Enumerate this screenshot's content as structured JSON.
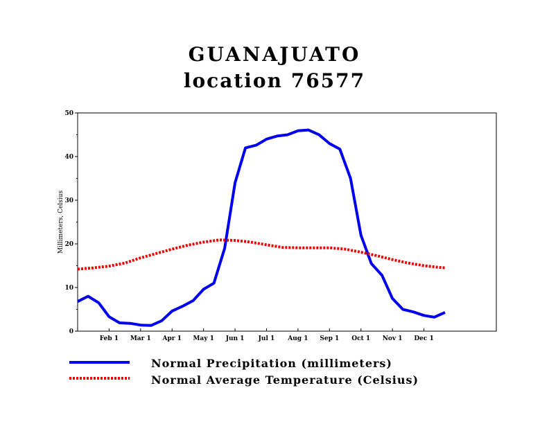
{
  "chart_data": {
    "type": "line",
    "title": "GUANAJUATO",
    "subtitle": "location 76577",
    "xlabel": "",
    "ylabel": "Millimeters, Celsius",
    "ylim": [
      0,
      50
    ],
    "yticks": [
      0,
      10,
      20,
      30,
      40,
      50
    ],
    "xlim": [
      0,
      13.3
    ],
    "xticks": [
      {
        "label": "Feb 1",
        "x": 1
      },
      {
        "label": "Mar 1",
        "x": 2
      },
      {
        "label": "Apr 1",
        "x": 3
      },
      {
        "label": "May 1",
        "x": 4
      },
      {
        "label": "Jun 1",
        "x": 5
      },
      {
        "label": "Jul 1",
        "x": 6
      },
      {
        "label": "Aug 1",
        "x": 7
      },
      {
        "label": "Sep 1",
        "x": 8
      },
      {
        "label": "Oct 1",
        "x": 9
      },
      {
        "label": "Nov 1",
        "x": 10
      },
      {
        "label": "Dec 1",
        "x": 11
      }
    ],
    "legend_position": "bottom",
    "series": [
      {
        "name": "Normal Precipitation (millimeters)",
        "color": "#0000ee",
        "style": "solid",
        "points": [
          [
            0.0,
            6.8
          ],
          [
            0.33,
            8.0
          ],
          [
            0.67,
            6.5
          ],
          [
            1.0,
            3.3
          ],
          [
            1.33,
            1.9
          ],
          [
            1.67,
            1.8
          ],
          [
            2.0,
            1.4
          ],
          [
            2.33,
            1.3
          ],
          [
            2.67,
            2.4
          ],
          [
            3.0,
            4.6
          ],
          [
            3.33,
            5.7
          ],
          [
            3.67,
            7.0
          ],
          [
            4.0,
            9.6
          ],
          [
            4.33,
            11.0
          ],
          [
            4.67,
            19.0
          ],
          [
            5.0,
            34.0
          ],
          [
            5.33,
            42.0
          ],
          [
            5.67,
            42.6
          ],
          [
            6.0,
            44.0
          ],
          [
            6.33,
            44.7
          ],
          [
            6.67,
            45.0
          ],
          [
            7.0,
            45.9
          ],
          [
            7.33,
            46.1
          ],
          [
            7.67,
            45.0
          ],
          [
            8.0,
            43.0
          ],
          [
            8.33,
            41.7
          ],
          [
            8.67,
            35.0
          ],
          [
            9.0,
            22.0
          ],
          [
            9.33,
            15.5
          ],
          [
            9.67,
            12.8
          ],
          [
            10.0,
            7.5
          ],
          [
            10.33,
            5.0
          ],
          [
            10.67,
            4.4
          ],
          [
            11.0,
            3.6
          ],
          [
            11.33,
            3.2
          ],
          [
            11.67,
            4.3
          ]
        ]
      },
      {
        "name": "Normal Average Temperature (Celsius)",
        "color": "#ee0000",
        "style": "dotted",
        "points": [
          [
            0.0,
            14.2
          ],
          [
            0.5,
            14.5
          ],
          [
            1.0,
            14.9
          ],
          [
            1.5,
            15.6
          ],
          [
            2.0,
            16.8
          ],
          [
            2.5,
            17.8
          ],
          [
            3.0,
            18.8
          ],
          [
            3.5,
            19.7
          ],
          [
            4.0,
            20.4
          ],
          [
            4.5,
            20.9
          ],
          [
            5.0,
            20.8
          ],
          [
            5.5,
            20.4
          ],
          [
            6.0,
            19.8
          ],
          [
            6.5,
            19.2
          ],
          [
            7.0,
            19.1
          ],
          [
            7.5,
            19.1
          ],
          [
            8.0,
            19.1
          ],
          [
            8.5,
            18.8
          ],
          [
            9.0,
            18.1
          ],
          [
            9.5,
            17.3
          ],
          [
            10.0,
            16.4
          ],
          [
            10.5,
            15.6
          ],
          [
            11.0,
            15.0
          ],
          [
            11.5,
            14.6
          ],
          [
            11.67,
            14.5
          ]
        ]
      }
    ]
  }
}
